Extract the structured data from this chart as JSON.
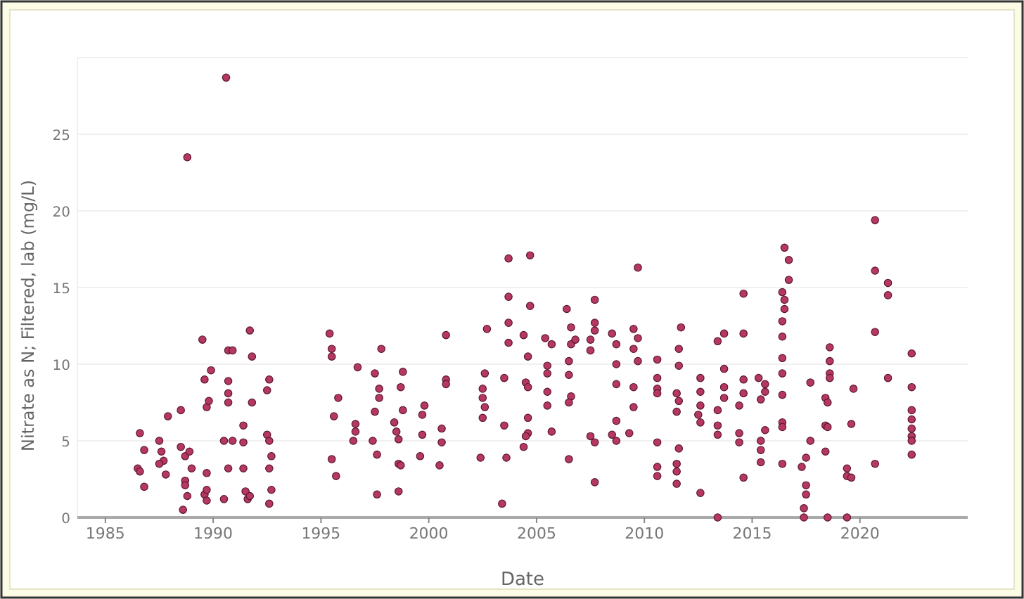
{
  "chart_data": {
    "type": "scatter",
    "xlabel": "Date",
    "ylabel": "Nitrate as N; Filtered, lab (mg/L)",
    "xlim": [
      1983.7,
      2025
    ],
    "xticks": [
      1985,
      1990,
      1995,
      2000,
      2005,
      2010,
      2015,
      2020
    ],
    "ylim": [
      0,
      30
    ],
    "yticks": [
      0,
      5,
      10,
      15,
      20,
      25
    ],
    "grid": "y",
    "marker": "circle",
    "series": [
      {
        "color": "#b5385f",
        "x": [
          1986.6,
          1986.5,
          1986.8,
          1986.8,
          1986.6,
          1987.5,
          1987.6,
          1987.7,
          1987.5,
          1987.8,
          1987.9,
          1988.5,
          1988.5,
          1988.7,
          1988.9,
          1988.7,
          1988.7,
          1988.8,
          1988.6,
          1989.0,
          1988.8,
          1989.5,
          1989.6,
          1989.9,
          1989.7,
          1989.8,
          1989.7,
          1989.6,
          1989.7,
          1989.7,
          1990.6,
          1990.7,
          1990.9,
          1990.7,
          1990.7,
          1990.7,
          1990.5,
          1990.9,
          1990.7,
          1990.5,
          1991.4,
          1991.4,
          1991.4,
          1991.5,
          1991.6,
          1991.7,
          1991.8,
          1991.8,
          1991.7,
          1992.5,
          1992.6,
          1992.5,
          1992.6,
          1992.7,
          1992.6,
          1992.7,
          1992.6,
          1995.4,
          1995.5,
          1995.5,
          1995.8,
          1995.6,
          1995.5,
          1995.7,
          1996.7,
          1996.6,
          1996.6,
          1996.5,
          1997.5,
          1997.7,
          1997.7,
          1997.5,
          1997.4,
          1997.6,
          1997.6,
          1997.8,
          1998.8,
          1998.7,
          1998.8,
          1998.4,
          1998.5,
          1998.6,
          1998.6,
          1998.7,
          1998.6,
          1999.8,
          1999.7,
          1999.7,
          1999.6,
          2000.8,
          2000.8,
          2000.8,
          2000.6,
          2000.6,
          2000.5,
          2002.5,
          2002.5,
          2002.6,
          2002.5,
          2002.6,
          2002.7,
          2002.4,
          2003.5,
          2003.5,
          2003.6,
          2003.4,
          2003.7,
          2003.7,
          2003.7,
          2003.7,
          2004.7,
          2004.7,
          2004.4,
          2004.6,
          2004.5,
          2004.6,
          2004.6,
          2004.6,
          2004.5,
          2004.4,
          2005.4,
          2005.7,
          2005.5,
          2005.5,
          2005.5,
          2005.5,
          2005.7,
          2006.4,
          2006.6,
          2006.8,
          2006.6,
          2006.5,
          2006.5,
          2006.6,
          2006.5,
          2006.5,
          2007.7,
          2007.7,
          2007.7,
          2007.5,
          2007.5,
          2007.5,
          2007.7,
          2007.7,
          2008.5,
          2008.7,
          2008.7,
          2008.7,
          2008.7,
          2008.5,
          2008.7,
          2009.3,
          2009.7,
          2009.5,
          2009.7,
          2009.5,
          2009.7,
          2009.5,
          2009.5,
          2010.6,
          2010.6,
          2010.6,
          2010.6,
          2010.6,
          2010.6,
          2010.6,
          2011.7,
          2011.6,
          2011.6,
          2011.5,
          2011.6,
          2011.5,
          2011.6,
          2011.5,
          2011.5,
          2011.5,
          2012.6,
          2012.6,
          2012.6,
          2012.5,
          2012.6,
          2012.6,
          2013.4,
          2013.7,
          2013.7,
          2013.7,
          2013.7,
          2013.4,
          2013.4,
          2013.4,
          2013.4,
          2014.6,
          2014.6,
          2014.6,
          2014.6,
          2014.4,
          2014.4,
          2014.4,
          2014.6,
          2015.3,
          2015.6,
          2015.6,
          2015.4,
          2015.6,
          2015.4,
          2015.4,
          2015.4,
          2016.5,
          2016.7,
          2016.7,
          2016.4,
          2016.5,
          2016.5,
          2016.4,
          2016.4,
          2016.4,
          2016.4,
          2016.4,
          2016.4,
          2016.4,
          2016.4,
          2017.7,
          2017.7,
          2017.5,
          2017.3,
          2017.5,
          2017.5,
          2017.4,
          2017.4,
          2018.6,
          2018.6,
          2018.6,
          2018.6,
          2018.4,
          2018.5,
          2018.4,
          2018.5,
          2018.4,
          2018.5,
          2019.7,
          2019.6,
          2019.4,
          2019.4,
          2019.6,
          2019.4,
          2020.7,
          2020.7,
          2020.7,
          2020.7,
          2021.3,
          2021.3,
          2021.3,
          2022.4,
          2022.4,
          2022.4,
          2022.4,
          2022.4,
          2022.4,
          2022.4,
          2022.4
        ],
        "values": [
          5.5,
          3.2,
          2.0,
          4.4,
          3.0,
          5.0,
          4.3,
          3.7,
          3.5,
          2.8,
          6.6,
          7.0,
          4.6,
          4.0,
          4.3,
          2.4,
          2.1,
          1.4,
          0.5,
          3.2,
          23.5,
          11.6,
          9.0,
          9.6,
          7.2,
          7.6,
          2.9,
          1.5,
          1.8,
          1.1,
          28.7,
          10.9,
          10.9,
          8.9,
          8.1,
          7.5,
          5.0,
          5.0,
          3.2,
          1.2,
          6.0,
          4.9,
          3.2,
          1.7,
          1.2,
          12.2,
          10.5,
          7.5,
          1.4,
          8.3,
          9.0,
          5.4,
          5.0,
          4.0,
          3.2,
          1.8,
          0.9,
          12.0,
          11.0,
          10.5,
          7.8,
          6.6,
          3.8,
          2.7,
          9.8,
          6.1,
          5.6,
          5.0,
          9.4,
          8.4,
          7.8,
          6.9,
          5.0,
          4.1,
          1.5,
          11.0,
          9.5,
          8.5,
          7.0,
          6.2,
          5.6,
          5.1,
          3.5,
          3.4,
          1.7,
          7.3,
          6.7,
          5.4,
          4.0,
          11.9,
          9.0,
          8.7,
          5.8,
          4.9,
          3.4,
          8.4,
          7.8,
          7.2,
          6.5,
          9.4,
          12.3,
          3.9,
          9.1,
          6.0,
          3.9,
          0.9,
          16.9,
          14.4,
          12.7,
          11.4,
          17.1,
          13.8,
          11.9,
          10.5,
          8.8,
          8.5,
          6.5,
          5.5,
          5.3,
          4.6,
          11.7,
          11.3,
          9.9,
          9.4,
          8.2,
          7.3,
          5.6,
          13.6,
          11.3,
          11.6,
          12.4,
          10.2,
          9.3,
          7.9,
          7.5,
          3.8,
          14.2,
          12.7,
          12.2,
          11.6,
          10.9,
          5.3,
          4.9,
          2.3,
          12.0,
          11.3,
          10.0,
          8.7,
          6.3,
          5.4,
          5.0,
          5.5,
          16.3,
          12.3,
          11.7,
          11.0,
          10.2,
          8.5,
          7.2,
          10.3,
          9.1,
          8.4,
          8.1,
          4.9,
          3.3,
          2.7,
          12.4,
          11.0,
          9.9,
          8.1,
          7.6,
          6.9,
          4.5,
          3.5,
          3.0,
          2.2,
          9.1,
          8.2,
          7.3,
          6.7,
          6.2,
          1.6,
          11.5,
          12.0,
          9.7,
          8.5,
          7.8,
          7.0,
          6.0,
          5.4,
          0,
          14.6,
          12.0,
          9.0,
          8.1,
          7.3,
          5.5,
          4.9,
          2.6,
          9.1,
          8.7,
          8.2,
          7.7,
          5.7,
          5.0,
          4.4,
          3.6,
          17.6,
          16.8,
          15.5,
          14.7,
          14.2,
          13.6,
          12.8,
          11.8,
          10.4,
          9.4,
          8.0,
          6.2,
          5.9,
          3.5,
          8.8,
          5.0,
          3.9,
          3.3,
          2.1,
          1.5,
          0.6,
          0,
          11.1,
          10.2,
          9.4,
          9.1,
          7.8,
          7.5,
          6.0,
          5.9,
          4.3,
          0,
          8.4,
          6.1,
          3.2,
          2.7,
          2.6,
          0,
          19.4,
          16.1,
          12.1,
          3.5,
          15.3,
          14.5,
          9.1,
          10.7,
          8.5,
          7.0,
          6.4,
          5.8,
          5.3,
          5.0,
          4.1
        ]
      }
    ]
  }
}
